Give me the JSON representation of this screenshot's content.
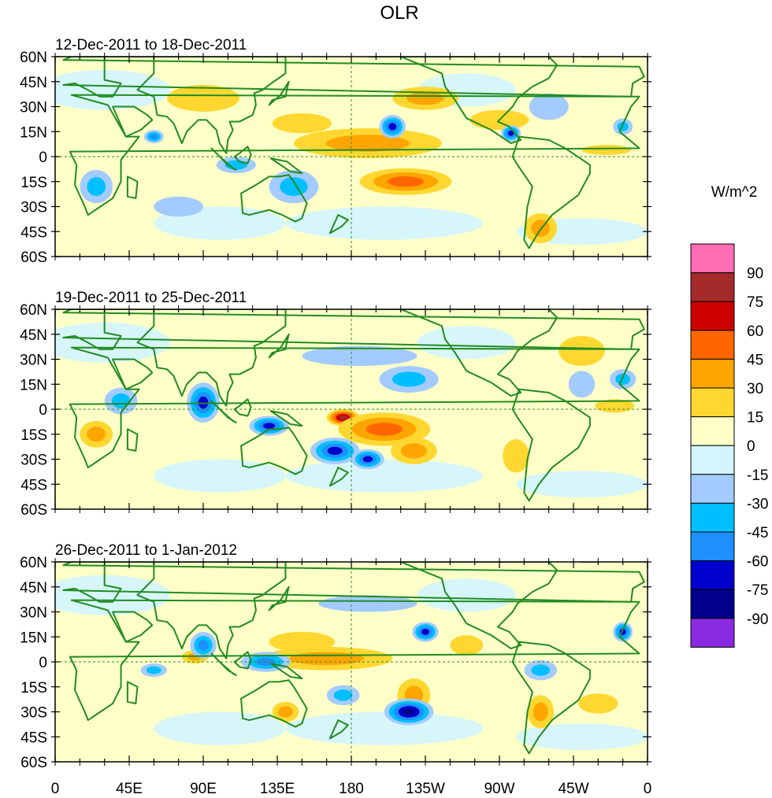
{
  "chart_data": {
    "type": "heatmap",
    "title": "OLR",
    "units": "W/m^2",
    "panels": [
      {
        "subtitle": "12-Dec-2011 to 18-Dec-2011",
        "anomalies": [
          {
            "lon": 190,
            "lat": 8,
            "value": 35,
            "rx": 45,
            "ry": 9
          },
          {
            "lon": 213,
            "lat": -15,
            "value": 45,
            "rx": 28,
            "ry": 8
          },
          {
            "lon": 225,
            "lat": 35,
            "value": 30,
            "rx": 20,
            "ry": 7
          },
          {
            "lon": 150,
            "lat": 20,
            "value": 20,
            "rx": 18,
            "ry": 6
          },
          {
            "lon": 270,
            "lat": 22,
            "value": 20,
            "rx": 18,
            "ry": 6
          },
          {
            "lon": 295,
            "lat": -43,
            "value": 40,
            "rx": 10,
            "ry": 9
          },
          {
            "lon": 335,
            "lat": 4,
            "value": 20,
            "rx": 15,
            "ry": 3
          },
          {
            "lon": 90,
            "lat": 35,
            "value": 15,
            "rx": 22,
            "ry": 8
          },
          {
            "lon": 205,
            "lat": 18,
            "value": -70,
            "rx": 8,
            "ry": 7
          },
          {
            "lon": 277,
            "lat": 14,
            "value": -65,
            "rx": 6,
            "ry": 5
          },
          {
            "lon": 60,
            "lat": 12,
            "value": -50,
            "rx": 6,
            "ry": 4
          },
          {
            "lon": 145,
            "lat": -18,
            "value": -30,
            "rx": 15,
            "ry": 10
          },
          {
            "lon": 110,
            "lat": -5,
            "value": -30,
            "rx": 12,
            "ry": 5
          },
          {
            "lon": 25,
            "lat": -18,
            "value": -30,
            "rx": 10,
            "ry": 10
          },
          {
            "lon": 300,
            "lat": 30,
            "value": -20,
            "rx": 12,
            "ry": 8
          },
          {
            "lon": 345,
            "lat": 18,
            "value": -35,
            "rx": 6,
            "ry": 5
          },
          {
            "lon": 75,
            "lat": -30,
            "value": -20,
            "rx": 15,
            "ry": 6
          }
        ]
      },
      {
        "subtitle": "19-Dec-2011 to 25-Dec-2011",
        "anomalies": [
          {
            "lon": 175,
            "lat": -5,
            "value": 80,
            "rx": 10,
            "ry": 5
          },
          {
            "lon": 200,
            "lat": -12,
            "value": 45,
            "rx": 28,
            "ry": 10
          },
          {
            "lon": 218,
            "lat": -25,
            "value": 40,
            "rx": 14,
            "ry": 8
          },
          {
            "lon": 25,
            "lat": -15,
            "value": 35,
            "rx": 10,
            "ry": 8
          },
          {
            "lon": 320,
            "lat": 35,
            "value": 20,
            "rx": 14,
            "ry": 9
          },
          {
            "lon": 340,
            "lat": 2,
            "value": 20,
            "rx": 12,
            "ry": 4
          },
          {
            "lon": 280,
            "lat": -28,
            "value": 15,
            "rx": 8,
            "ry": 10
          },
          {
            "lon": 90,
            "lat": 4,
            "value": -70,
            "rx": 10,
            "ry": 12
          },
          {
            "lon": 130,
            "lat": -10,
            "value": -60,
            "rx": 12,
            "ry": 6
          },
          {
            "lon": 170,
            "lat": -25,
            "value": -65,
            "rx": 15,
            "ry": 8
          },
          {
            "lon": 190,
            "lat": -30,
            "value": -60,
            "rx": 10,
            "ry": 6
          },
          {
            "lon": 215,
            "lat": 18,
            "value": -40,
            "rx": 18,
            "ry": 8
          },
          {
            "lon": 185,
            "lat": 32,
            "value": -15,
            "rx": 35,
            "ry": 6
          },
          {
            "lon": 40,
            "lat": 5,
            "value": -30,
            "rx": 10,
            "ry": 8
          },
          {
            "lon": 345,
            "lat": 18,
            "value": -30,
            "rx": 8,
            "ry": 6
          },
          {
            "lon": 320,
            "lat": 15,
            "value": -25,
            "rx": 8,
            "ry": 8
          }
        ]
      },
      {
        "subtitle": "26-Dec-2011 to 1-Jan-2012",
        "anomalies": [
          {
            "lon": 165,
            "lat": 2,
            "value": 35,
            "rx": 40,
            "ry": 7
          },
          {
            "lon": 218,
            "lat": -20,
            "value": 35,
            "rx": 10,
            "ry": 10
          },
          {
            "lon": 150,
            "lat": 12,
            "value": 20,
            "rx": 20,
            "ry": 6
          },
          {
            "lon": 250,
            "lat": 10,
            "value": 20,
            "rx": 10,
            "ry": 6
          },
          {
            "lon": 295,
            "lat": -30,
            "value": 35,
            "rx": 8,
            "ry": 10
          },
          {
            "lon": 330,
            "lat": -25,
            "value": 25,
            "rx": 12,
            "ry": 6
          },
          {
            "lon": 140,
            "lat": -30,
            "value": 30,
            "rx": 8,
            "ry": 6
          },
          {
            "lon": 85,
            "lat": 3,
            "value": 35,
            "rx": 8,
            "ry": 4
          },
          {
            "lon": 215,
            "lat": -30,
            "value": -75,
            "rx": 15,
            "ry": 8
          },
          {
            "lon": 225,
            "lat": 18,
            "value": -60,
            "rx": 8,
            "ry": 6
          },
          {
            "lon": 345,
            "lat": 18,
            "value": -60,
            "rx": 6,
            "ry": 6
          },
          {
            "lon": 90,
            "lat": 10,
            "value": -45,
            "rx": 8,
            "ry": 8
          },
          {
            "lon": 128,
            "lat": 0,
            "value": -50,
            "rx": 15,
            "ry": 6
          },
          {
            "lon": 175,
            "lat": -20,
            "value": -30,
            "rx": 10,
            "ry": 6
          },
          {
            "lon": 60,
            "lat": -5,
            "value": -35,
            "rx": 8,
            "ry": 4
          },
          {
            "lon": 295,
            "lat": -5,
            "value": -30,
            "rx": 10,
            "ry": 6
          },
          {
            "lon": 190,
            "lat": 35,
            "value": -15,
            "rx": 30,
            "ry": 5
          }
        ]
      }
    ],
    "x_ticks": [
      "0",
      "45E",
      "90E",
      "135E",
      "180",
      "135W",
      "90W",
      "45W",
      "0"
    ],
    "y_ticks": [
      "60N",
      "45N",
      "30N",
      "15N",
      "0",
      "15S",
      "30S",
      "45S",
      "60S"
    ],
    "xlim": [
      0,
      360
    ],
    "ylim": [
      -60,
      60
    ],
    "colorbar": {
      "labels": [
        "90",
        "75",
        "60",
        "45",
        "30",
        "15",
        "0",
        "-15",
        "-30",
        "-45",
        "-60",
        "-75",
        "-90"
      ],
      "levels": [
        90,
        75,
        60,
        45,
        30,
        15,
        0,
        -15,
        -30,
        -45,
        -60,
        -75,
        -90
      ],
      "colors": [
        "#ff6eb4",
        "#a52a2a",
        "#cd0000",
        "#ff6600",
        "#ffa500",
        "#ffd730",
        "#ffffc8",
        "#d2f5ff",
        "#a3cbff",
        "#00bfff",
        "#1e90ff",
        "#0000cd",
        "#00008b",
        "#8a2be2"
      ]
    },
    "coast_color": "#228b22",
    "grid_color": "#2e8b2e"
  }
}
